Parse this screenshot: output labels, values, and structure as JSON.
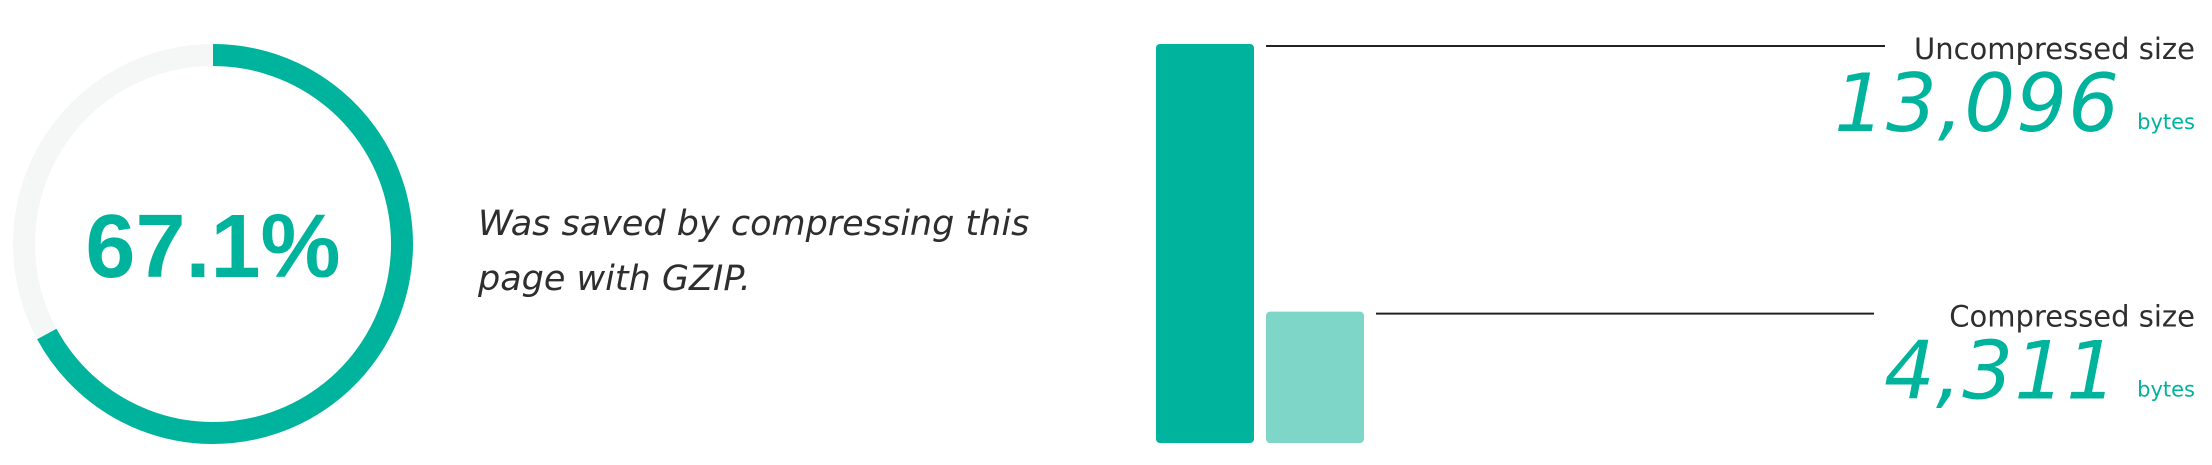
{
  "summary": {
    "percent_label": "67.1%",
    "percent_value": 67.1,
    "description_line1": "Was saved by compressing this",
    "description_line2": "page with GZIP."
  },
  "chart_data": {
    "type": "bar",
    "categories": [
      "Uncompressed size",
      "Compressed size"
    ],
    "values": [
      13096,
      4311
    ],
    "value_labels": [
      "13,096",
      "4,311"
    ],
    "unit": "bytes",
    "ylim": [
      0,
      13096
    ],
    "legend": "right",
    "grid": false
  },
  "colors": {
    "primary": "#00b39c",
    "primary_light": "#7dd6c7",
    "track": "#f4f7f6",
    "text": "#2e2e2e",
    "line": "#222222"
  }
}
